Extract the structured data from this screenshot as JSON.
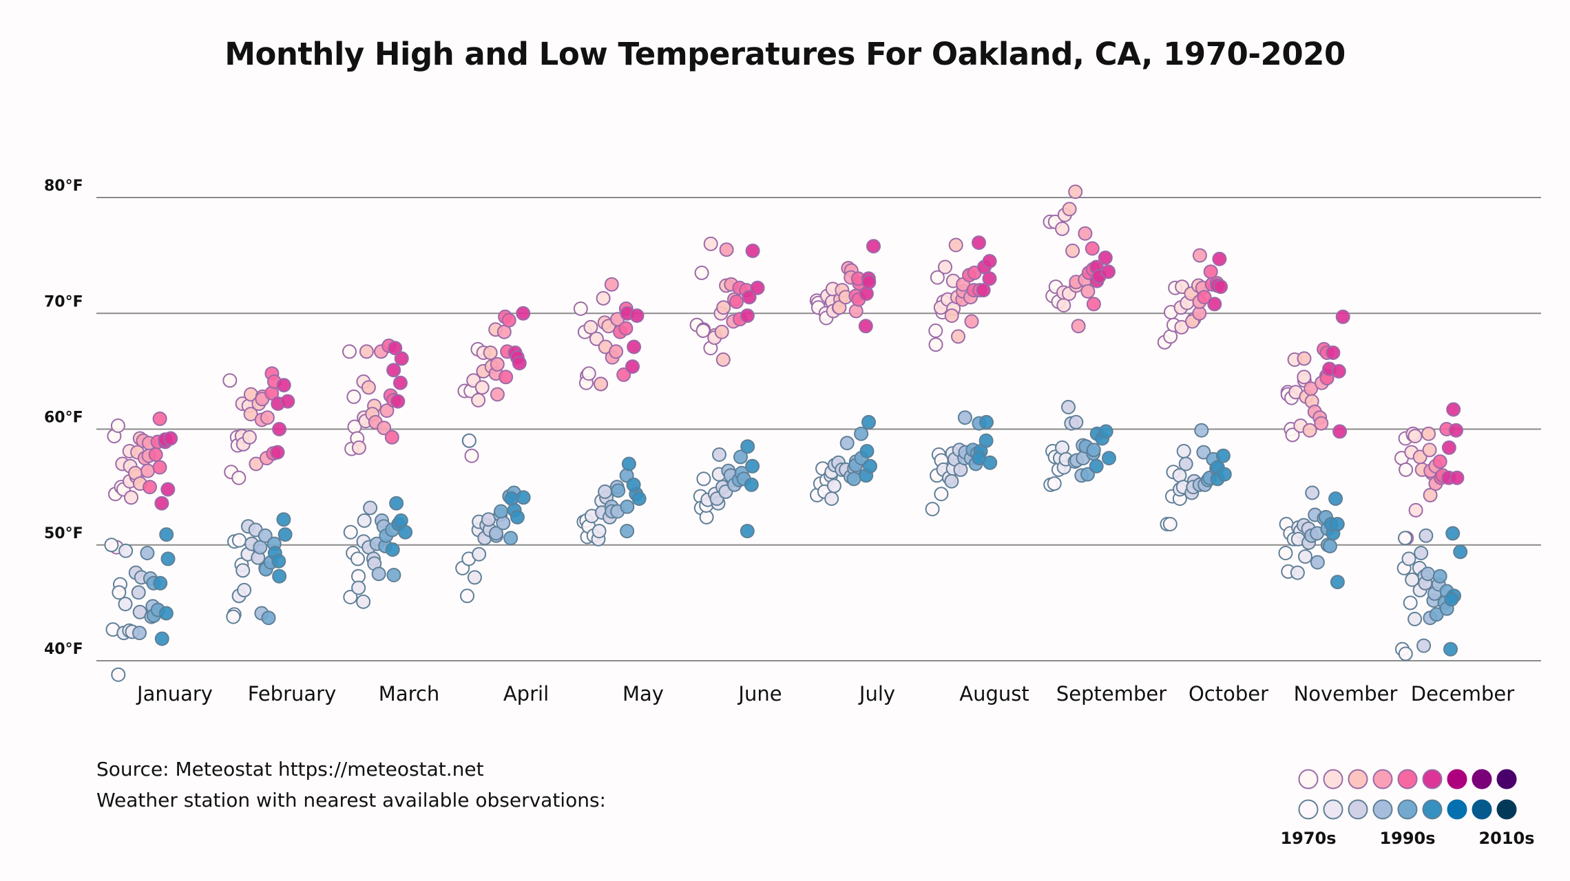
{
  "chart_data": {
    "type": "scatter",
    "title": "Monthly High and Low Temperatures For Oakland, CA, 1970-2020",
    "xlabel": "",
    "ylabel": "",
    "ylim": [
      40,
      80
    ],
    "y_ticks": [
      {
        "value": 80,
        "label": "80°F"
      },
      {
        "value": 70,
        "label": "70°F"
      },
      {
        "value": 60,
        "label": "60°F"
      },
      {
        "value": 50,
        "label": "50°F"
      },
      {
        "value": 40,
        "label": "40°F"
      }
    ],
    "grid": true,
    "categories": [
      "January",
      "February",
      "March",
      "April",
      "May",
      "June",
      "July",
      "August",
      "September",
      "October",
      "November",
      "December"
    ],
    "year_range": [
      1970,
      2020
    ],
    "series": [
      {
        "name": "High",
        "palette": [
          "#fff7f3",
          "#fde0dd",
          "#fcc5c0",
          "#fa9fb5",
          "#f768a1",
          "#dd3497",
          "#ae017e",
          "#7a0177",
          "#49006a"
        ],
        "stroke": "#9b6aa8",
        "months": [
          [
            59.4,
            49.8,
            54.4,
            60.3,
            55.0,
            54.8,
            57.0,
            55.5,
            58.1,
            56.8,
            54.1,
            55.9,
            58.0,
            56.2,
            59.2,
            55.3,
            57.5,
            59.0,
            56.4,
            58.8,
            57.7,
            55.0,
            58.9,
            56.7,
            57.8,
            60.9,
            58.9,
            53.6,
            59.1,
            54.8,
            59.2
          ],
          [
            64.2,
            56.3,
            55.8,
            59.3,
            58.6,
            59.4,
            62.2,
            58.7,
            59.3,
            62.0,
            61.3,
            63.0,
            62.2,
            57.0,
            62.8,
            60.8,
            62.6,
            57.5,
            61.0,
            64.8,
            57.9,
            63.1,
            64.1,
            62.2,
            58.0,
            60.0,
            63.8,
            62.4
          ],
          [
            66.7,
            62.8,
            58.3,
            60.2,
            59.2,
            58.4,
            61.0,
            64.1,
            60.7,
            66.7,
            63.6,
            62.0,
            61.3,
            60.6,
            66.7,
            60.1,
            61.6,
            67.2,
            62.9,
            59.3,
            62.5,
            67.0,
            65.1,
            62.4,
            64.0,
            66.1
          ],
          [
            63.3,
            59.0,
            57.7,
            63.3,
            66.9,
            64.2,
            62.5,
            63.6,
            66.6,
            65.0,
            65.4,
            66.6,
            68.6,
            64.8,
            63.0,
            65.6,
            68.4,
            66.7,
            69.7,
            64.5,
            69.4,
            66.6,
            66.2,
            65.7,
            70.0
          ],
          [
            70.4,
            64.6,
            68.4,
            64.0,
            64.8,
            68.8,
            67.8,
            63.9,
            71.3,
            63.9,
            67.1,
            69.2,
            68.9,
            66.2,
            72.5,
            66.7,
            69.5,
            68.4,
            68.7,
            64.7,
            70.4,
            70.0,
            67.1,
            65.4,
            69.8
          ],
          [
            69.0,
            73.5,
            68.6,
            68.5,
            67.0,
            76.0,
            68.1,
            67.9,
            70.0,
            68.4,
            70.5,
            66.0,
            72.4,
            75.5,
            71.2,
            72.5,
            69.3,
            71.0,
            72.2,
            69.5,
            72.0,
            69.8,
            71.4,
            75.4,
            72.2
          ],
          [
            71.1,
            70.9,
            70.5,
            70.0,
            69.6,
            71.5,
            71.0,
            72.1,
            70.2,
            70.5,
            71.2,
            70.5,
            72.0,
            71.4,
            73.9,
            73.7,
            73.1,
            70.2,
            71.5,
            72.6,
            71.2,
            73.0,
            71.7,
            68.9,
            73.0,
            72.7,
            75.8
          ],
          [
            68.5,
            67.3,
            73.1,
            70.1,
            71.0,
            70.5,
            74.0,
            71.2,
            70.4,
            72.8,
            69.8,
            71.4,
            75.9,
            68.0,
            71.2,
            71.9,
            72.5,
            69.3,
            71.4,
            73.3,
            72.0,
            73.5,
            72.0,
            76.1,
            74.0,
            72.0,
            74.5,
            73.0
          ],
          [
            77.9,
            77.9,
            71.5,
            72.3,
            71.0,
            70.7,
            71.8,
            77.3,
            78.5,
            71.7,
            79.0,
            75.4,
            80.5,
            72.4,
            72.7,
            68.9,
            72.9,
            76.9,
            71.9,
            75.6,
            73.5,
            73.8,
            70.8,
            72.8,
            74.0,
            73.2,
            74.8,
            73.6
          ],
          [
            67.5,
            68.0,
            70.1,
            69.0,
            72.2,
            70.5,
            68.8,
            72.3,
            70.9,
            71.7,
            69.5,
            69.3,
            72.4,
            75.0,
            70.0,
            71.0,
            72.2,
            71.4,
            73.6,
            72.5,
            72.6,
            70.8,
            72.4,
            74.7,
            72.3
          ],
          [
            63.2,
            63.0,
            60.0,
            59.5,
            62.7,
            63.2,
            66.0,
            60.3,
            64.2,
            64.5,
            66.1,
            62.8,
            59.9,
            62.4,
            63.5,
            61.5,
            61.0,
            60.5,
            64.0,
            66.9,
            64.6,
            66.6,
            64.4,
            65.2,
            66.6,
            65.0,
            59.8,
            69.7
          ],
          [
            57.5,
            50.6,
            56.5,
            59.2,
            59.5,
            58.0,
            59.6,
            59.4,
            53.0,
            57.6,
            56.5,
            59.6,
            58.2,
            54.3,
            56.2,
            56.4,
            56.8,
            55.3,
            57.2,
            55.8,
            56.0,
            60.0,
            58.4,
            55.8,
            61.7,
            59.9,
            55.8
          ]
        ]
      },
      {
        "name": "Low",
        "palette": [
          "#fff7fb",
          "#ece7f2",
          "#d0d1e6",
          "#a6bddb",
          "#74a9cf",
          "#3690c0",
          "#0570b0",
          "#045a8d",
          "#023858"
        ],
        "stroke": "#5e7f97",
        "months": [
          [
            50.0,
            42.7,
            38.8,
            46.6,
            45.9,
            44.9,
            42.4,
            49.5,
            42.6,
            42.5,
            47.6,
            44.2,
            47.2,
            45.9,
            42.4,
            49.3,
            47.1,
            43.8,
            44.7,
            46.7,
            44.3,
            43.9,
            44.4,
            41.9,
            46.7,
            44.1,
            50.9,
            48.8
          ],
          [
            50.3,
            44.0,
            43.8,
            50.4,
            48.3,
            45.6,
            47.8,
            46.1,
            49.2,
            51.6,
            50.1,
            51.3,
            48.9,
            49.8,
            50.8,
            44.1,
            48.0,
            47.9,
            43.7,
            48.5,
            50.1,
            49.3,
            48.6,
            47.3,
            52.2,
            50.9
          ],
          [
            51.1,
            45.5,
            49.3,
            48.8,
            47.3,
            46.3,
            45.1,
            50.3,
            52.1,
            53.2,
            49.8,
            48.8,
            48.4,
            50.1,
            52.1,
            47.5,
            51.6,
            49.9,
            50.8,
            51.3,
            47.4,
            49.6,
            51.8,
            53.6,
            52.1,
            51.1
          ],
          [
            48.0,
            45.6,
            48.8,
            59.0,
            47.2,
            49.2,
            51.3,
            52.0,
            50.6,
            51.7,
            51.3,
            52.2,
            50.8,
            51.0,
            52.6,
            51.9,
            52.9,
            54.2,
            50.6,
            54.5,
            54.0,
            53.0,
            52.4,
            54.1
          ],
          [
            52.0,
            50.7,
            52.1,
            51.6,
            50.8,
            52.5,
            50.5,
            51.2,
            53.8,
            52.8,
            54.1,
            54.6,
            52.4,
            53.3,
            52.9,
            55.0,
            52.9,
            54.7,
            53.3,
            51.2,
            56.0,
            57.0,
            54.4,
            55.2,
            54.0
          ],
          [
            54.2,
            53.2,
            52.4,
            55.7,
            53.4,
            53.9,
            54.4,
            53.6,
            56.1,
            54.0,
            57.8,
            55.0,
            54.6,
            55.6,
            56.4,
            56.0,
            55.2,
            55.6,
            56.2,
            57.6,
            55.7,
            58.5,
            51.2,
            56.8,
            55.2
          ],
          [
            54.3,
            55.3,
            56.6,
            55.6,
            54.6,
            56.0,
            54.0,
            55.1,
            56.3,
            56.9,
            57.1,
            56.5,
            56.5,
            58.8,
            55.9,
            56.6,
            57.2,
            55.7,
            56.9,
            57.5,
            59.6,
            58.1,
            56.0,
            60.6,
            56.8
          ],
          [
            53.1,
            57.8,
            54.4,
            56.0,
            57.3,
            56.5,
            55.8,
            57.9,
            56.6,
            55.5,
            57.4,
            58.2,
            56.5,
            57.5,
            61.0,
            58.0,
            57.5,
            58.2,
            57.0,
            57.9,
            60.5,
            58.1,
            57.5,
            60.6,
            57.1,
            59.0
          ],
          [
            55.2,
            58.1,
            55.3,
            57.6,
            56.5,
            57.5,
            58.4,
            56.7,
            57.4,
            61.9,
            60.5,
            57.2,
            60.6,
            57.3,
            58.6,
            56.0,
            57.5,
            58.5,
            56.1,
            57.9,
            58.2,
            59.6,
            56.8,
            59.2,
            59.8,
            57.5
          ],
          [
            51.8,
            51.8,
            56.3,
            54.2,
            54.0,
            56.0,
            54.8,
            58.1,
            55.0,
            57.0,
            54.5,
            55.5,
            55.0,
            55.2,
            59.9,
            55.2,
            58.0,
            55.6,
            55.8,
            57.4,
            56.6,
            55.7,
            56.7,
            57.7,
            56.1
          ],
          [
            51.8,
            51.0,
            49.3,
            47.7,
            50.5,
            51.5,
            51.2,
            47.6,
            50.5,
            49.0,
            51.7,
            51.4,
            54.5,
            50.2,
            50.8,
            48.5,
            52.6,
            51.0,
            52.3,
            52.4,
            50.0,
            51.4,
            49.9,
            51.0,
            51.8,
            46.8,
            54.0,
            51.8
          ],
          [
            48.0,
            50.6,
            41.0,
            40.6,
            45.0,
            48.8,
            47.0,
            43.6,
            46.1,
            48.0,
            49.3,
            47.3,
            41.3,
            46.7,
            50.8,
            47.5,
            43.7,
            45.2,
            45.8,
            46.6,
            44.0,
            47.3,
            46.0,
            45.0,
            44.5,
            41.0,
            45.6,
            45.3,
            51.0,
            49.4
          ]
        ]
      }
    ],
    "legend": {
      "placement": "bottom-right",
      "labels": [
        "1970s",
        "1990s",
        "2010s"
      ]
    },
    "source_lines": [
      "Source: Meteostat https://meteostat.net",
      "Weather station with nearest available observations:"
    ]
  }
}
